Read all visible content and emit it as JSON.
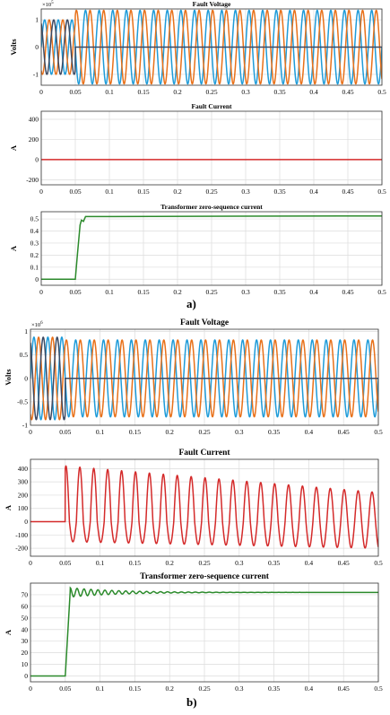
{
  "colors": {
    "phaseA": "#1f9bd8",
    "phaseB": "#e8711a",
    "phaseC": "#3d4a63",
    "fault": "#d42a2a",
    "zero": "#2b8a2b"
  },
  "panel_labels": [
    "a)",
    "b)"
  ],
  "chart_data": [
    {
      "type": "line",
      "title": "Fault Voltage",
      "ylabel": "Volts",
      "exponent_base": "×10",
      "exponent_power": "5",
      "xlim": [
        0,
        0.5
      ],
      "ylim": [
        -1.4,
        1.4
      ],
      "xticks": [
        "0",
        "0.05",
        "0.1",
        "0.15",
        "0.2",
        "0.25",
        "0.3",
        "0.35",
        "0.4",
        "0.45",
        "0.5"
      ],
      "yticks": [
        {
          "v": 1,
          "label": "1"
        },
        {
          "v": 0,
          "label": "0"
        },
        {
          "v": -1,
          "label": "-1"
        }
      ],
      "grid": true,
      "fault_time": 0.05,
      "frequency_hz": 50,
      "pre_amp": 1.0,
      "post_amp": 1.35,
      "series": [
        {
          "color": "phaseA",
          "phase_deg": 0
        },
        {
          "color": "phaseB",
          "phase_deg": -120
        },
        {
          "color": "phaseC",
          "phase_deg": 120
        }
      ]
    },
    {
      "type": "line",
      "title": "Fault Current",
      "ylabel": "A",
      "xlim": [
        0,
        0.5
      ],
      "ylim": [
        -250,
        480
      ],
      "xticks": [
        "0",
        "0.05",
        "0.1",
        "0.15",
        "0.2",
        "0.25",
        "0.3",
        "0.35",
        "0.4",
        "0.45",
        "0.5"
      ],
      "yticks": [
        {
          "v": 400,
          "label": "400"
        },
        {
          "v": 200,
          "label": "200"
        },
        {
          "v": 0,
          "label": "0"
        },
        {
          "v": -200,
          "label": "-200"
        }
      ],
      "grid": true,
      "series": [
        {
          "color": "fault",
          "x": [
            0,
            0.5
          ],
          "y": [
            0,
            0
          ]
        }
      ]
    },
    {
      "type": "line",
      "title": "Transformer zero-sequence current",
      "ylabel": "A",
      "xlim": [
        0,
        0.5
      ],
      "ylim": [
        -0.05,
        0.56
      ],
      "xticks": [
        "0",
        "0.05",
        "0.1",
        "0.15",
        "0.2",
        "0.25",
        "0.3",
        "0.35",
        "0.4",
        "0.45",
        "0.5"
      ],
      "yticks": [
        {
          "v": 0.5,
          "label": "0.5"
        },
        {
          "v": 0.4,
          "label": "0.4"
        },
        {
          "v": 0.3,
          "label": "0.3"
        },
        {
          "v": 0.2,
          "label": "0.2"
        },
        {
          "v": 0.1,
          "label": "0.1"
        },
        {
          "v": 0,
          "label": "0"
        }
      ],
      "grid": true,
      "series": [
        {
          "color": "zero",
          "x": [
            0,
            0.05,
            0.053,
            0.057,
            0.059,
            0.062,
            0.065,
            0.07,
            0.5
          ],
          "y": [
            0,
            0,
            0.2,
            0.45,
            0.49,
            0.48,
            0.52,
            0.52,
            0.525
          ]
        }
      ]
    },
    {
      "type": "line",
      "title": "Fault Voltage",
      "ylabel": "Volts",
      "exponent_base": "×10",
      "exponent_power": "6",
      "xlim": [
        0,
        0.5
      ],
      "ylim": [
        -1.0,
        1.05
      ],
      "xticks": [
        "0",
        "0.05",
        "0.1",
        "0.15",
        "0.2",
        "0.25",
        "0.3",
        "0.35",
        "0.4",
        "0.45",
        "0.5"
      ],
      "yticks": [
        {
          "v": 1,
          "label": "1"
        },
        {
          "v": 0.5,
          "label": "0.5"
        },
        {
          "v": 0,
          "label": "0"
        },
        {
          "v": -0.5,
          "label": "-0.5"
        },
        {
          "v": -1,
          "label": "-1"
        }
      ],
      "grid": true,
      "fault_time": 0.05,
      "frequency_hz": 50,
      "pre_amp": 0.88,
      "post_amp": 0.82,
      "series": [
        {
          "color": "phaseA",
          "phase_deg": 0
        },
        {
          "color": "phaseB",
          "phase_deg": -120
        },
        {
          "color": "phaseC",
          "phase_deg": 120
        }
      ]
    },
    {
      "type": "line",
      "title": "Fault Current",
      "ylabel": "A",
      "xlim": [
        0,
        0.5
      ],
      "ylim": [
        -260,
        470
      ],
      "xticks": [
        "0",
        "0.05",
        "0.1",
        "0.15",
        "0.2",
        "0.25",
        "0.3",
        "0.35",
        "0.4",
        "0.45",
        "0.5"
      ],
      "yticks": [
        {
          "v": 400,
          "label": "400"
        },
        {
          "v": 300,
          "label": "300"
        },
        {
          "v": 200,
          "label": "200"
        },
        {
          "v": 100,
          "label": "100"
        },
        {
          "v": 0,
          "label": "0"
        },
        {
          "v": -100,
          "label": "-100"
        },
        {
          "v": -200,
          "label": "-200"
        }
      ],
      "grid": true,
      "fault_time": 0.05,
      "frequency_hz": 50,
      "start_peak": 420,
      "end_peak": 220,
      "start_trough": -150,
      "end_trough": -200,
      "series": [
        {
          "color": "fault"
        }
      ]
    },
    {
      "type": "line",
      "title": "Transformer zero-sequence current",
      "ylabel": "A",
      "xlim": [
        0,
        0.5
      ],
      "ylim": [
        -5,
        80
      ],
      "xticks": [
        "0",
        "0.05",
        "0.1",
        "0.15",
        "0.2",
        "0.25",
        "0.3",
        "0.35",
        "0.4",
        "0.45",
        "0.5"
      ],
      "yticks": [
        {
          "v": 70,
          "label": "70"
        },
        {
          "v": 60,
          "label": "60"
        },
        {
          "v": 50,
          "label": "50"
        },
        {
          "v": 40,
          "label": "40"
        },
        {
          "v": 30,
          "label": "30"
        },
        {
          "v": 20,
          "label": "20"
        },
        {
          "v": 10,
          "label": "10"
        },
        {
          "v": 0,
          "label": "0"
        }
      ],
      "grid": true,
      "fault_time": 0.05,
      "steady": 72,
      "ripple": 4,
      "series": [
        {
          "color": "zero"
        }
      ]
    }
  ]
}
